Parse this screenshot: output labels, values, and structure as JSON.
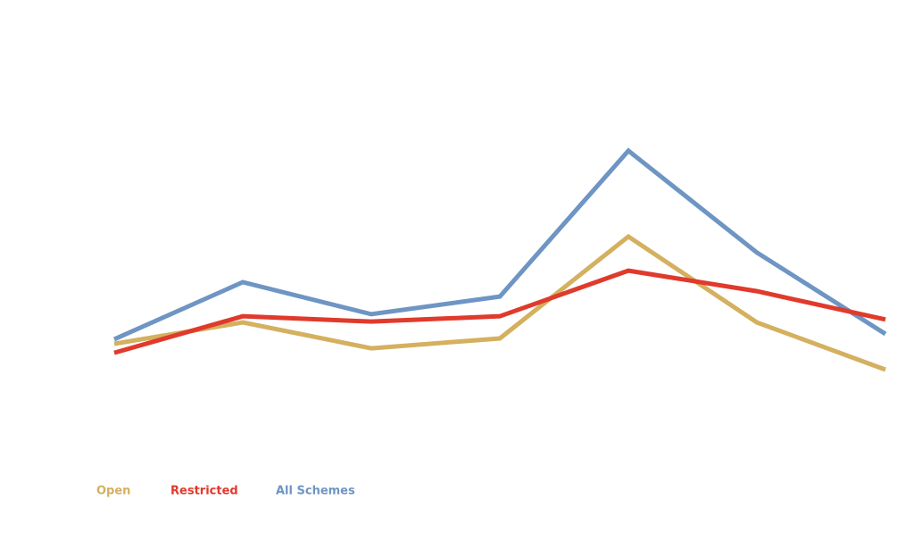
{
  "chart_data": {
    "type": "line",
    "categories": [
      null,
      null,
      null,
      null,
      null,
      null,
      null
    ],
    "series": [
      {
        "name": "Open",
        "color": "#d4b05f",
        "values": [
          25.0,
          30.2,
          23.9,
          26.3,
          51.1,
          30.2,
          18.7
        ]
      },
      {
        "name": "Restricted",
        "color": "#e03a2c",
        "values": [
          22.8,
          31.7,
          30.4,
          31.7,
          42.8,
          37.8,
          30.9
        ]
      },
      {
        "name": "All Schemes",
        "color": "#6e95c3",
        "values": [
          26.1,
          40.0,
          32.2,
          36.5,
          72.0,
          47.2,
          27.4
        ]
      }
    ],
    "ylim": [
      0,
      100
    ],
    "grid": false,
    "legend": "bottom-left"
  }
}
